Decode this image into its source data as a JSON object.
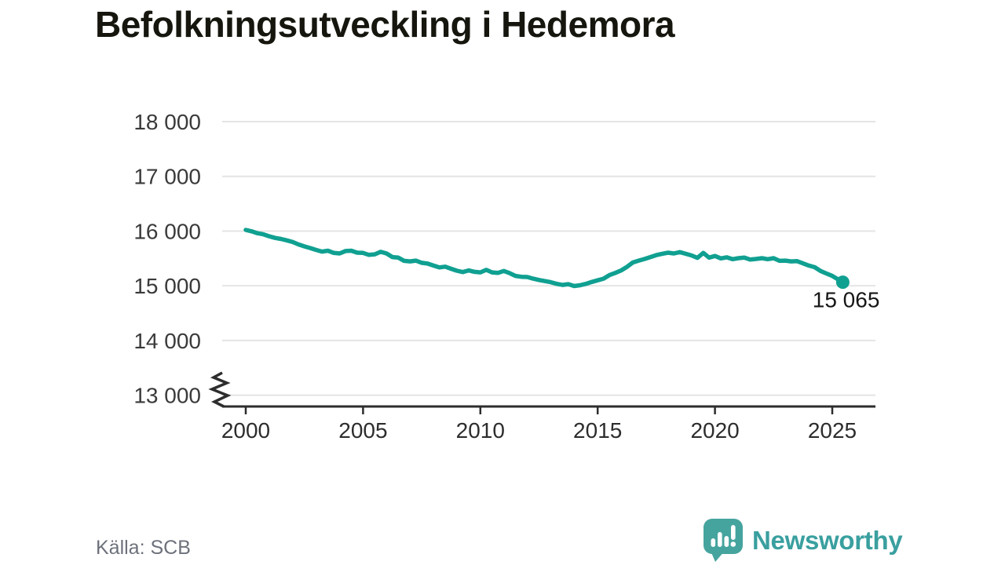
{
  "title": "Befolkningsutveckling i Hedemora",
  "source": "Källa: SCB",
  "branding": {
    "name": "Newsworthy"
  },
  "colors": {
    "line": "#10a091",
    "grid": "#e4e4e4",
    "axis": "#2d2d2d",
    "logo_icon": "#46a49e",
    "logo_text": "#3a9f9f"
  },
  "chart_data": {
    "type": "line",
    "title": "Befolkningsutveckling i Hedemora",
    "xlabel": "",
    "ylabel": "",
    "grid": "horizontal",
    "legend": "none",
    "axis_break_at_bottom": true,
    "xlim": [
      2000,
      2025.45
    ],
    "ylim_visible": [
      13000,
      18000
    ],
    "y_ticks": [
      {
        "value": 18000,
        "label": "18 000"
      },
      {
        "value": 17000,
        "label": "17 000"
      },
      {
        "value": 16000,
        "label": "16 000"
      },
      {
        "value": 15000,
        "label": "15 000"
      },
      {
        "value": 14000,
        "label": "14 000"
      },
      {
        "value": 13000,
        "label": "13 000"
      }
    ],
    "x_ticks": [
      {
        "value": 2000,
        "label": "2000"
      },
      {
        "value": 2005,
        "label": "2005"
      },
      {
        "value": 2010,
        "label": "2010"
      },
      {
        "value": 2015,
        "label": "2015"
      },
      {
        "value": 2020,
        "label": "2020"
      },
      {
        "value": 2025,
        "label": "2025"
      }
    ],
    "annotation": {
      "label": "15 065",
      "value": 15065,
      "x": 2025.45
    },
    "series": [
      {
        "name": "Befolkning",
        "points": [
          [
            2000.0,
            16020
          ],
          [
            2000.25,
            15995
          ],
          [
            2000.5,
            15960
          ],
          [
            2000.75,
            15940
          ],
          [
            2001.0,
            15905
          ],
          [
            2001.25,
            15875
          ],
          [
            2001.5,
            15855
          ],
          [
            2001.75,
            15830
          ],
          [
            2002.0,
            15800
          ],
          [
            2002.25,
            15755
          ],
          [
            2002.5,
            15720
          ],
          [
            2002.75,
            15690
          ],
          [
            2003.0,
            15655
          ],
          [
            2003.25,
            15625
          ],
          [
            2003.5,
            15640
          ],
          [
            2003.75,
            15600
          ],
          [
            2004.0,
            15590
          ],
          [
            2004.25,
            15635
          ],
          [
            2004.5,
            15640
          ],
          [
            2004.75,
            15605
          ],
          [
            2005.0,
            15600
          ],
          [
            2005.25,
            15565
          ],
          [
            2005.5,
            15575
          ],
          [
            2005.75,
            15620
          ],
          [
            2006.0,
            15590
          ],
          [
            2006.25,
            15525
          ],
          [
            2006.5,
            15515
          ],
          [
            2006.75,
            15455
          ],
          [
            2007.0,
            15445
          ],
          [
            2007.25,
            15460
          ],
          [
            2007.5,
            15420
          ],
          [
            2007.75,
            15405
          ],
          [
            2008.0,
            15370
          ],
          [
            2008.25,
            15335
          ],
          [
            2008.5,
            15350
          ],
          [
            2008.75,
            15310
          ],
          [
            2009.0,
            15275
          ],
          [
            2009.25,
            15250
          ],
          [
            2009.5,
            15280
          ],
          [
            2009.75,
            15255
          ],
          [
            2010.0,
            15245
          ],
          [
            2010.25,
            15290
          ],
          [
            2010.5,
            15245
          ],
          [
            2010.75,
            15235
          ],
          [
            2011.0,
            15270
          ],
          [
            2011.25,
            15230
          ],
          [
            2011.5,
            15180
          ],
          [
            2011.75,
            15165
          ],
          [
            2012.0,
            15160
          ],
          [
            2012.25,
            15130
          ],
          [
            2012.5,
            15105
          ],
          [
            2012.75,
            15085
          ],
          [
            2013.0,
            15065
          ],
          [
            2013.25,
            15035
          ],
          [
            2013.5,
            15015
          ],
          [
            2013.75,
            15030
          ],
          [
            2014.0,
            14995
          ],
          [
            2014.25,
            15010
          ],
          [
            2014.5,
            15035
          ],
          [
            2014.75,
            15070
          ],
          [
            2015.0,
            15100
          ],
          [
            2015.25,
            15130
          ],
          [
            2015.5,
            15195
          ],
          [
            2015.75,
            15235
          ],
          [
            2016.0,
            15280
          ],
          [
            2016.25,
            15345
          ],
          [
            2016.5,
            15425
          ],
          [
            2016.75,
            15460
          ],
          [
            2017.0,
            15490
          ],
          [
            2017.25,
            15525
          ],
          [
            2017.5,
            15560
          ],
          [
            2017.75,
            15585
          ],
          [
            2018.0,
            15605
          ],
          [
            2018.25,
            15590
          ],
          [
            2018.5,
            15615
          ],
          [
            2018.75,
            15585
          ],
          [
            2019.0,
            15555
          ],
          [
            2019.25,
            15510
          ],
          [
            2019.5,
            15600
          ],
          [
            2019.75,
            15515
          ],
          [
            2020.0,
            15545
          ],
          [
            2020.25,
            15500
          ],
          [
            2020.5,
            15520
          ],
          [
            2020.75,
            15485
          ],
          [
            2021.0,
            15505
          ],
          [
            2021.25,
            15515
          ],
          [
            2021.5,
            15480
          ],
          [
            2021.75,
            15490
          ],
          [
            2022.0,
            15505
          ],
          [
            2022.25,
            15485
          ],
          [
            2022.5,
            15505
          ],
          [
            2022.75,
            15455
          ],
          [
            2023.0,
            15460
          ],
          [
            2023.25,
            15445
          ],
          [
            2023.5,
            15450
          ],
          [
            2023.75,
            15410
          ],
          [
            2024.0,
            15370
          ],
          [
            2024.25,
            15340
          ],
          [
            2024.5,
            15270
          ],
          [
            2024.75,
            15225
          ],
          [
            2025.0,
            15180
          ],
          [
            2025.25,
            15115
          ],
          [
            2025.45,
            15065
          ]
        ]
      }
    ]
  }
}
